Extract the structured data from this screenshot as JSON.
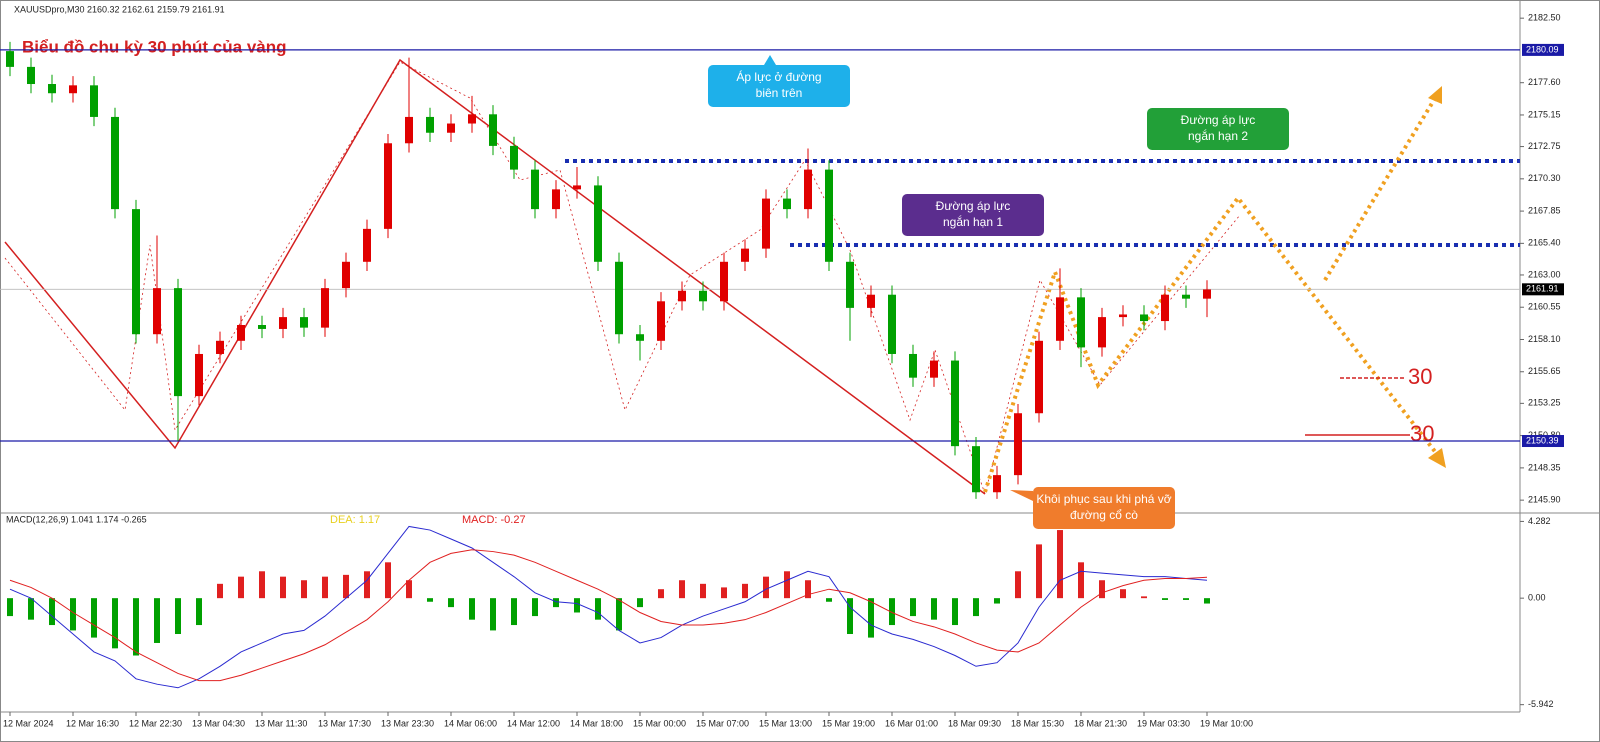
{
  "chart_data": {
    "type": "candlestick",
    "header": "XAUUSDpro,M30  2160.32 2162.61 2159.79 2161.91",
    "title": "Biểu đồ chu kỳ 30 phút của vàng",
    "up_color": "#e00000",
    "down_color": "#00a000",
    "ylim": [
      2145.0,
      2183.5
    ],
    "yticks": [
      {
        "value": 2182.5,
        "label": "2182.50"
      },
      {
        "value": 2177.6,
        "label": "2177.60"
      },
      2175.15,
      2172.75,
      {
        "value": 2170.3,
        "label": "2170.30"
      },
      2167.85,
      {
        "value": 2165.4,
        "label": "2165.40"
      },
      {
        "value": 2163.0,
        "label": "2163.00"
      },
      2160.55,
      {
        "value": 2158.1,
        "label": "2158.10"
      },
      2155.65,
      2153.25,
      {
        "value": 2150.8,
        "label": "2150.80"
      },
      2148.35,
      {
        "value": 2145.9,
        "label": "2145.90"
      }
    ],
    "levels": [
      {
        "value": 2180.09,
        "color": "#1a1aa6"
      },
      {
        "value": 2161.91,
        "color": "#000000"
      },
      {
        "value": 2150.39,
        "color": "#1a1aa6"
      }
    ],
    "x_labels": [
      "12 Mar 2024",
      "12 Mar 16:30",
      "12 Mar 22:30",
      "13 Mar 04:30",
      "13 Mar 11:30",
      "13 Mar 17:30",
      "13 Mar 23:30",
      "14 Mar 06:00",
      "14 Mar 12:00",
      "14 Mar 18:00",
      "15 Mar 00:00",
      "15 Mar 07:00",
      "15 Mar 13:00",
      "15 Mar 19:00",
      "16 Mar 01:00",
      "18 Mar 09:30",
      "18 Mar 15:30",
      "18 Mar 21:30",
      "19 Mar 03:30",
      "19 Mar 10:00"
    ],
    "candles": {
      "open": [
        2180.0,
        2178.8,
        2177.5,
        2176.8,
        2177.4,
        2175.0,
        2168.0,
        2158.5,
        2162.0,
        2153.8,
        2157.0,
        2158.0,
        2159.2,
        2158.9,
        2159.8,
        2159.0,
        2162.0,
        2164.0,
        2166.5,
        2173.0,
        2175.0,
        2173.8,
        2174.5,
        2175.2,
        2172.8,
        2171.0,
        2168.0,
        2169.5,
        2169.8,
        2164.0,
        2158.5,
        2158.0,
        2161.0,
        2161.8,
        2161.0,
        2164.0,
        2165.0,
        2168.8,
        2168.0,
        2171.0,
        2164.0,
        2160.5,
        2161.5,
        2157.0,
        2155.2,
        2156.5,
        2150.0,
        2146.5,
        2147.8,
        2152.5,
        2158.0,
        2161.3,
        2157.5,
        2159.8,
        2160.0,
        2159.5,
        2161.5,
        2161.2
      ],
      "high": [
        2180.7,
        2179.5,
        2178.2,
        2178.1,
        2178.1,
        2175.7,
        2168.7,
        2166.0,
        2162.7,
        2157.7,
        2158.7,
        2159.9,
        2159.9,
        2160.5,
        2160.5,
        2162.7,
        2164.7,
        2167.2,
        2173.7,
        2179.5,
        2175.7,
        2175.2,
        2176.6,
        2175.9,
        2173.5,
        2171.7,
        2170.2,
        2171.2,
        2170.5,
        2164.7,
        2159.2,
        2161.7,
        2162.5,
        2162.5,
        2164.7,
        2165.7,
        2169.5,
        2169.5,
        2172.6,
        2171.7,
        2164.7,
        2162.2,
        2162.2,
        2157.7,
        2157.2,
        2157.2,
        2150.7,
        2148.5,
        2153.2,
        2158.7,
        2163.5,
        2162.0,
        2160.5,
        2160.7,
        2160.7,
        2162.2,
        2162.2,
        2162.6
      ],
      "low": [
        2178.1,
        2176.8,
        2176.1,
        2176.1,
        2174.3,
        2167.3,
        2157.8,
        2157.8,
        2150.4,
        2153.1,
        2156.3,
        2157.3,
        2158.2,
        2158.2,
        2158.3,
        2158.3,
        2161.3,
        2163.3,
        2165.8,
        2172.3,
        2173.1,
        2173.1,
        2173.8,
        2172.1,
        2170.3,
        2167.3,
        2167.3,
        2168.8,
        2163.3,
        2157.8,
        2156.5,
        2157.3,
        2160.3,
        2160.3,
        2160.3,
        2163.3,
        2164.3,
        2167.3,
        2167.3,
        2163.3,
        2158.0,
        2159.8,
        2156.3,
        2154.5,
        2154.5,
        2149.3,
        2146.0,
        2146.0,
        2147.1,
        2151.8,
        2157.3,
        2156.0,
        2156.8,
        2159.1,
        2158.8,
        2158.8,
        2160.5,
        2159.8
      ],
      "close": [
        2178.8,
        2177.5,
        2176.8,
        2177.4,
        2175.0,
        2168.0,
        2158.5,
        2162.0,
        2153.8,
        2157.0,
        2158.0,
        2159.2,
        2158.9,
        2159.8,
        2159.0,
        2162.0,
        2164.0,
        2166.5,
        2173.0,
        2175.0,
        2173.8,
        2174.5,
        2175.2,
        2172.8,
        2171.0,
        2168.0,
        2169.5,
        2169.8,
        2164.0,
        2158.5,
        2158.0,
        2161.0,
        2161.8,
        2161.0,
        2164.0,
        2165.0,
        2168.8,
        2168.0,
        2171.0,
        2164.0,
        2160.5,
        2161.5,
        2157.0,
        2155.2,
        2156.5,
        2150.0,
        2146.5,
        2147.8,
        2152.5,
        2158.0,
        2161.3,
        2157.5,
        2159.8,
        2160.0,
        2159.5,
        2161.5,
        2161.2,
        2161.9
      ]
    },
    "annotations": [
      {
        "lines": [
          "Áp lực ở đường",
          "biên trên"
        ],
        "color": "#1eb0ea"
      },
      {
        "lines": [
          "Đường áp lực",
          "ngắn hạn 2"
        ],
        "color": "#22a038"
      },
      {
        "lines": [
          "Đường áp lực",
          "ngắn hạn 1"
        ],
        "color": "#5b2d8e"
      },
      {
        "lines": [
          "Khôi phục sau khi phá vỡ",
          "đường cổ cò"
        ],
        "color": "#f07c2c"
      }
    ],
    "side_labels": [
      30,
      30
    ],
    "macd": {
      "header": "MACD(12,26,9) 1.041 1.174 -0.265",
      "dea_label": "DEA:  1.17",
      "macd_label": "MACD:  -0.27",
      "ylim": [
        -6.24,
        4.64
      ],
      "yticks": [
        4.282,
        {
          "value": 0,
          "label": "0.00"
        },
        -5.942
      ],
      "histogram": [
        -1.0,
        -1.2,
        -1.5,
        -1.8,
        -2.2,
        -2.8,
        -3.2,
        -2.5,
        -2.0,
        -1.5,
        0.8,
        1.2,
        1.5,
        1.2,
        1.0,
        1.2,
        1.3,
        1.5,
        2.0,
        1.0,
        -0.2,
        -0.5,
        -1.2,
        -1.8,
        -1.5,
        -1.0,
        -0.5,
        -0.8,
        -1.2,
        -1.8,
        -0.5,
        0.5,
        1.0,
        0.8,
        0.6,
        0.8,
        1.2,
        1.5,
        1.0,
        -0.2,
        -2.0,
        -2.2,
        -1.5,
        -1.0,
        -1.2,
        -1.5,
        -1.0,
        -0.3,
        1.5,
        3.0,
        3.8,
        2.0,
        1.0,
        0.5,
        0.1,
        -0.1,
        -0.1,
        -0.3
      ],
      "series": [
        {
          "color": "#2a2ad0",
          "values": [
            0.5,
            0,
            -1,
            -2,
            -3,
            -3.5,
            -4.5,
            -4.8,
            -5.0,
            -4.5,
            -3.8,
            -3.0,
            -2.5,
            -2.0,
            -1.8,
            -1.0,
            0,
            1.0,
            2.5,
            4.0,
            3.8,
            3.3,
            2.8,
            2.0,
            1.2,
            0.3,
            -0.2,
            -0.3,
            -0.8,
            -1.8,
            -2.5,
            -2.2,
            -1.5,
            -1.0,
            -0.6,
            -0.2,
            0.5,
            1.0,
            1.5,
            1.2,
            -0.5,
            -1.5,
            -2.0,
            -2.3,
            -2.7,
            -3.2,
            -3.8,
            -3.6,
            -2.5,
            -0.5,
            1.0,
            1.5,
            1.4,
            1.3,
            1.2,
            1.2,
            1.1,
            1.0
          ]
        },
        {
          "color": "#e02020",
          "values": [
            1.0,
            0.6,
            0,
            -0.8,
            -1.5,
            -2.2,
            -3.0,
            -3.6,
            -4.2,
            -4.6,
            -4.6,
            -4.3,
            -3.9,
            -3.5,
            -3.1,
            -2.6,
            -1.9,
            -1.2,
            -0.2,
            1.0,
            2.0,
            2.5,
            2.7,
            2.6,
            2.4,
            2.0,
            1.5,
            1.0,
            0.5,
            -0.1,
            -0.8,
            -1.3,
            -1.5,
            -1.5,
            -1.4,
            -1.2,
            -0.8,
            -0.3,
            0.2,
            0.5,
            0.3,
            -0.2,
            -0.8,
            -1.3,
            -1.6,
            -2.0,
            -2.5,
            -2.9,
            -3.0,
            -2.5,
            -1.5,
            -0.5,
            0.3,
            0.7,
            1.0,
            1.1,
            1.1,
            1.17
          ]
        }
      ]
    }
  }
}
